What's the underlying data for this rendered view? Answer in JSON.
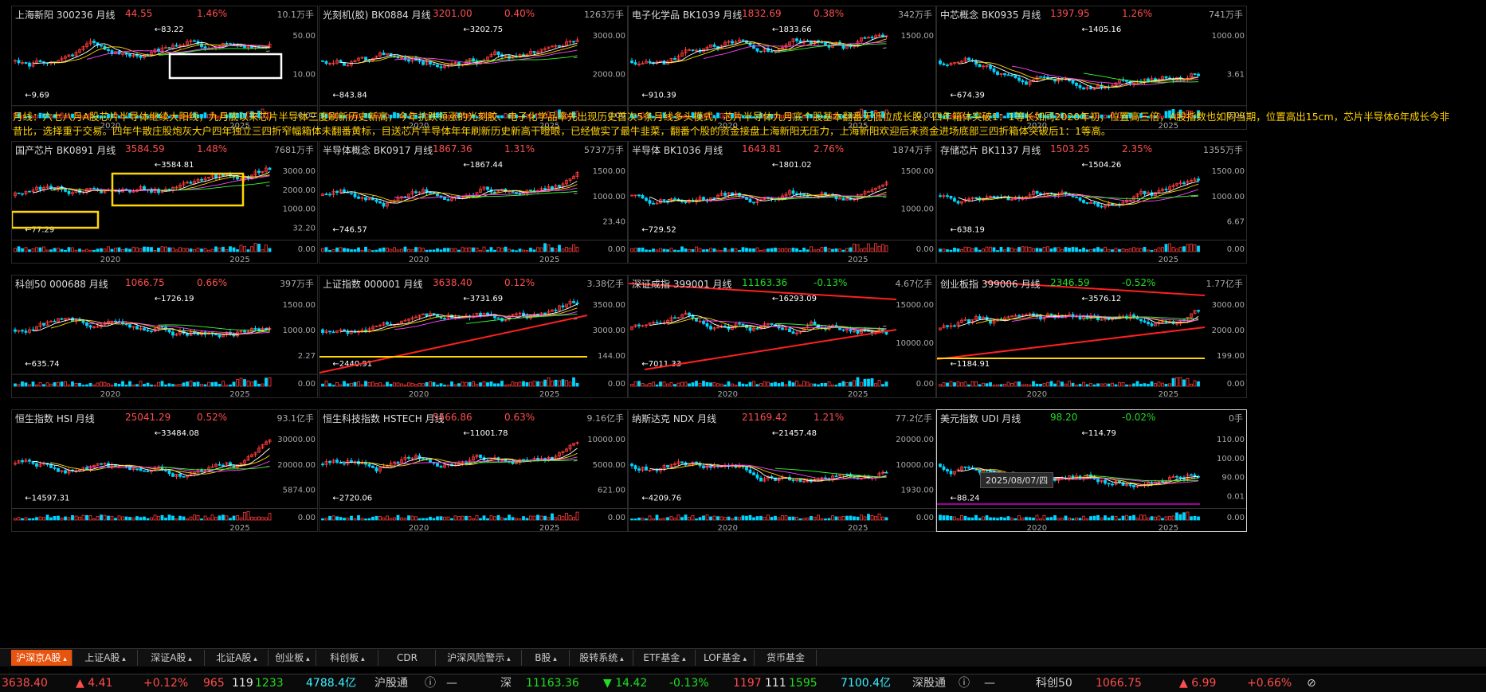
{
  "panels": [
    {
      "name": "上海新阳 300236 月线",
      "price": "44.55",
      "pct": "1.46%",
      "vol": "10.1万手",
      "trend": "red",
      "ylabels": [
        "50.00",
        "10.00"
      ],
      "vlabels": [
        "0.00"
      ],
      "xlabels": [
        "2020",
        "2025"
      ],
      "marks": [
        "83.22",
        "9.69"
      ],
      "seed": 1
    },
    {
      "name": "光刻机(胶) BK0884 月线",
      "price": "3201.00",
      "pct": "0.40%",
      "vol": "1263万手",
      "trend": "red",
      "ylabels": [
        "3000.00",
        "2000.00"
      ],
      "vlabels": [
        "0.00"
      ],
      "xlabels": [
        "2020",
        "2025"
      ],
      "marks": [
        "3202.75",
        "843.84"
      ],
      "seed": 2
    },
    {
      "name": "电子化学品 BK1039 月线",
      "price": "1832.69",
      "pct": "0.38%",
      "vol": "342万手",
      "trend": "red",
      "ylabels": [
        "1500.00"
      ],
      "vlabels": [
        "0.00"
      ],
      "xlabels": [
        "2020",
        "2025"
      ],
      "marks": [
        "1833.66",
        "910.39"
      ],
      "seed": 3
    },
    {
      "name": "中芯概念 BK0935 月线",
      "price": "1397.95",
      "pct": "1.26%",
      "vol": "741万手",
      "trend": "red",
      "ylabels": [
        "1000.00",
        "3.61"
      ],
      "vlabels": [
        "0.00"
      ],
      "xlabels": [
        "2020",
        "2025"
      ],
      "marks": [
        "1405.16",
        "674.39"
      ],
      "seed": 4
    },
    {
      "name": "国产芯片 BK0891 月线",
      "price": "3584.59",
      "pct": "1.48%",
      "vol": "7681万手",
      "trend": "red",
      "ylabels": [
        "3000.00",
        "2000.00",
        "1000.00",
        "32.20"
      ],
      "vlabels": [
        "0.00"
      ],
      "xlabels": [
        "2020",
        "2025"
      ],
      "marks": [
        "3584.81",
        "77.29"
      ],
      "seed": 5
    },
    {
      "name": "半导体概念 BK0917 月线",
      "price": "1867.36",
      "pct": "1.31%",
      "vol": "5737万手",
      "trend": "red",
      "ylabels": [
        "1500.00",
        "1000.00",
        "23.40"
      ],
      "vlabels": [
        "0.00"
      ],
      "xlabels": [
        "2020",
        "2025"
      ],
      "marks": [
        "1867.44",
        "746.57"
      ],
      "seed": 6
    },
    {
      "name": "半导体 BK1036 月线",
      "price": "1643.81",
      "pct": "2.76%",
      "vol": "1874万手",
      "trend": "red",
      "ylabels": [
        "1500.00",
        "1000.00"
      ],
      "vlabels": [
        "0.00"
      ],
      "xlabels": [
        "2025"
      ],
      "marks": [
        "1801.02",
        "729.52"
      ],
      "seed": 7
    },
    {
      "name": "存储芯片 BK1137 月线",
      "price": "1503.25",
      "pct": "2.35%",
      "vol": "1355万手",
      "trend": "red",
      "ylabels": [
        "1500.00",
        "1000.00",
        "6.67"
      ],
      "vlabels": [
        "0.00"
      ],
      "xlabels": [
        "2025"
      ],
      "marks": [
        "1504.26",
        "638.19"
      ],
      "seed": 8
    },
    {
      "name": "科创50 000688 月线",
      "price": "1066.75",
      "pct": "0.66%",
      "vol": "397万手",
      "trend": "red",
      "ylabels": [
        "1500.00",
        "1000.00",
        "2.27"
      ],
      "vlabels": [
        "0.00"
      ],
      "xlabels": [
        "2020",
        "2025"
      ],
      "marks": [
        "1726.19",
        "635.74"
      ],
      "seed": 9
    },
    {
      "name": "上证指数 000001 月线",
      "price": "3638.40",
      "pct": "0.12%",
      "vol": "3.38亿手",
      "trend": "red",
      "ylabels": [
        "3500.00",
        "3000.00",
        "144.00"
      ],
      "vlabels": [
        "0.00"
      ],
      "xlabels": [
        "2020",
        "2025"
      ],
      "marks": [
        "3731.69",
        "2440.91"
      ],
      "seed": 10
    },
    {
      "name": "深证成指 399001 月线",
      "price": "11163.36",
      "pct": "-0.13%",
      "vol": "4.67亿手",
      "trend": "green",
      "ylabels": [
        "15000.00",
        "10000.00"
      ],
      "vlabels": [
        "0.00"
      ],
      "xlabels": [
        "2020",
        "2025"
      ],
      "marks": [
        "16293.09",
        "7011.33"
      ],
      "seed": 11
    },
    {
      "name": "创业板指 399006 月线",
      "price": "2346.59",
      "pct": "-0.52%",
      "vol": "1.77亿手",
      "trend": "green",
      "ylabels": [
        "3000.00",
        "2000.00",
        "199.00"
      ],
      "vlabels": [
        "0.00"
      ],
      "xlabels": [
        "2020",
        "2025"
      ],
      "marks": [
        "3576.12",
        "1184.91"
      ],
      "seed": 12
    },
    {
      "name": "恒生指数 HSI 月线",
      "price": "25041.29",
      "pct": "0.52%",
      "vol": "93.1亿手",
      "trend": "red",
      "ylabels": [
        "30000.00",
        "20000.00",
        "5874.00"
      ],
      "vlabels": [
        "0.00"
      ],
      "xlabels": [
        "2025"
      ],
      "marks": [
        "33484.08",
        "14597.31"
      ],
      "seed": 13
    },
    {
      "name": "恒生科技指数 HSTECH 月线",
      "price": "5566.86",
      "pct": "0.63%",
      "vol": "9.16亿手",
      "trend": "red",
      "ylabels": [
        "10000.00",
        "5000.00",
        "621.00"
      ],
      "vlabels": [
        "0.00"
      ],
      "xlabels": [
        "2020",
        "2025"
      ],
      "marks": [
        "11001.78",
        "2720.06"
      ],
      "seed": 14
    },
    {
      "name": "纳斯达克 NDX 月线",
      "price": "21169.42",
      "pct": "1.21%",
      "vol": "77.2亿手",
      "trend": "red",
      "ylabels": [
        "20000.00",
        "10000.00",
        "1930.00"
      ],
      "vlabels": [
        "0.00"
      ],
      "xlabels": [
        "2020",
        "2025"
      ],
      "marks": [
        "21457.48",
        "4209.76"
      ],
      "seed": 15
    },
    {
      "name": "美元指数 UDI 月线",
      "price": "98.20",
      "pct": "-0.02%",
      "vol": "0手",
      "trend": "green",
      "ylabels": [
        "110.00",
        "100.00",
        "90.00",
        "0.01"
      ],
      "vlabels": [
        "0.00"
      ],
      "xlabels": [
        "2020",
        "2025"
      ],
      "marks": [
        "114.79",
        "88.24"
      ],
      "seed": 16
    }
  ],
  "annotation": "月线：六七八月A股芯片半导体继续大阳线，九月底以来芯片半导体三度刷新历史新高，今年抗跌领涨的光刻胶、电子化学品率先出现历史首次5条月线多头模式，芯片半导体九月底个股基本翻番无低位成长股，四年箱体突破1：1等长如同2020年初，位置高三倍，A股指数也如同当期，位置高出15cm，芯片半导体6年成长今非昔比，选择重于交易。四年牛散庄股炮灰大户四年独立三四折窄幅箱体未翻番黄标，目送芯片半导体年年刷新历史新高干瞪眼，已经做实了最牛韭菜，翻番个股的资金接盘上海新阳无压力，上海新阳欢迎后来资金进场底部三四折箱体突破后1：1等高。",
  "date_tip": "2025/08/07/四",
  "tabs": [
    "沪深京A股",
    "上证A股",
    "深证A股",
    "北证A股",
    "创业板",
    "科创板",
    "CDR",
    "沪深风险警示",
    "B股",
    "股转系统",
    "ETF基金",
    "LOF基金",
    "货币基金"
  ],
  "status": {
    "sh_index": "3638.40",
    "sh_change": "▲ 4.41",
    "sh_pct": "+0.12%",
    "sh_up": "965",
    "sh_flat": "119",
    "sh_down": "1233",
    "sh_amount": "4788.4亿",
    "hgt_label": "沪股通",
    "hgt_value": "—",
    "sz_label": "深",
    "sz_index": "11163.36",
    "sz_change": "▼ 14.42",
    "sz_pct": "-0.13%",
    "sz_up": "1197",
    "sz_flat": "111",
    "sz_down": "1595",
    "sz_amount": "7100.4亿",
    "sgt_label": "深股通",
    "sgt_value": "—",
    "kc_label": "科创50",
    "kc_index": "1066.75",
    "kc_change": "▲ 6.99",
    "kc_pct": "+0.66%"
  },
  "colors": {
    "up": "#ff3b3b",
    "down": "#00d5ff",
    "ma5": "#ffffff",
    "ma10": "#ffd700",
    "ma20": "#ff44ff",
    "ma60": "#33ff33",
    "ma120": "#aaaaaa"
  }
}
